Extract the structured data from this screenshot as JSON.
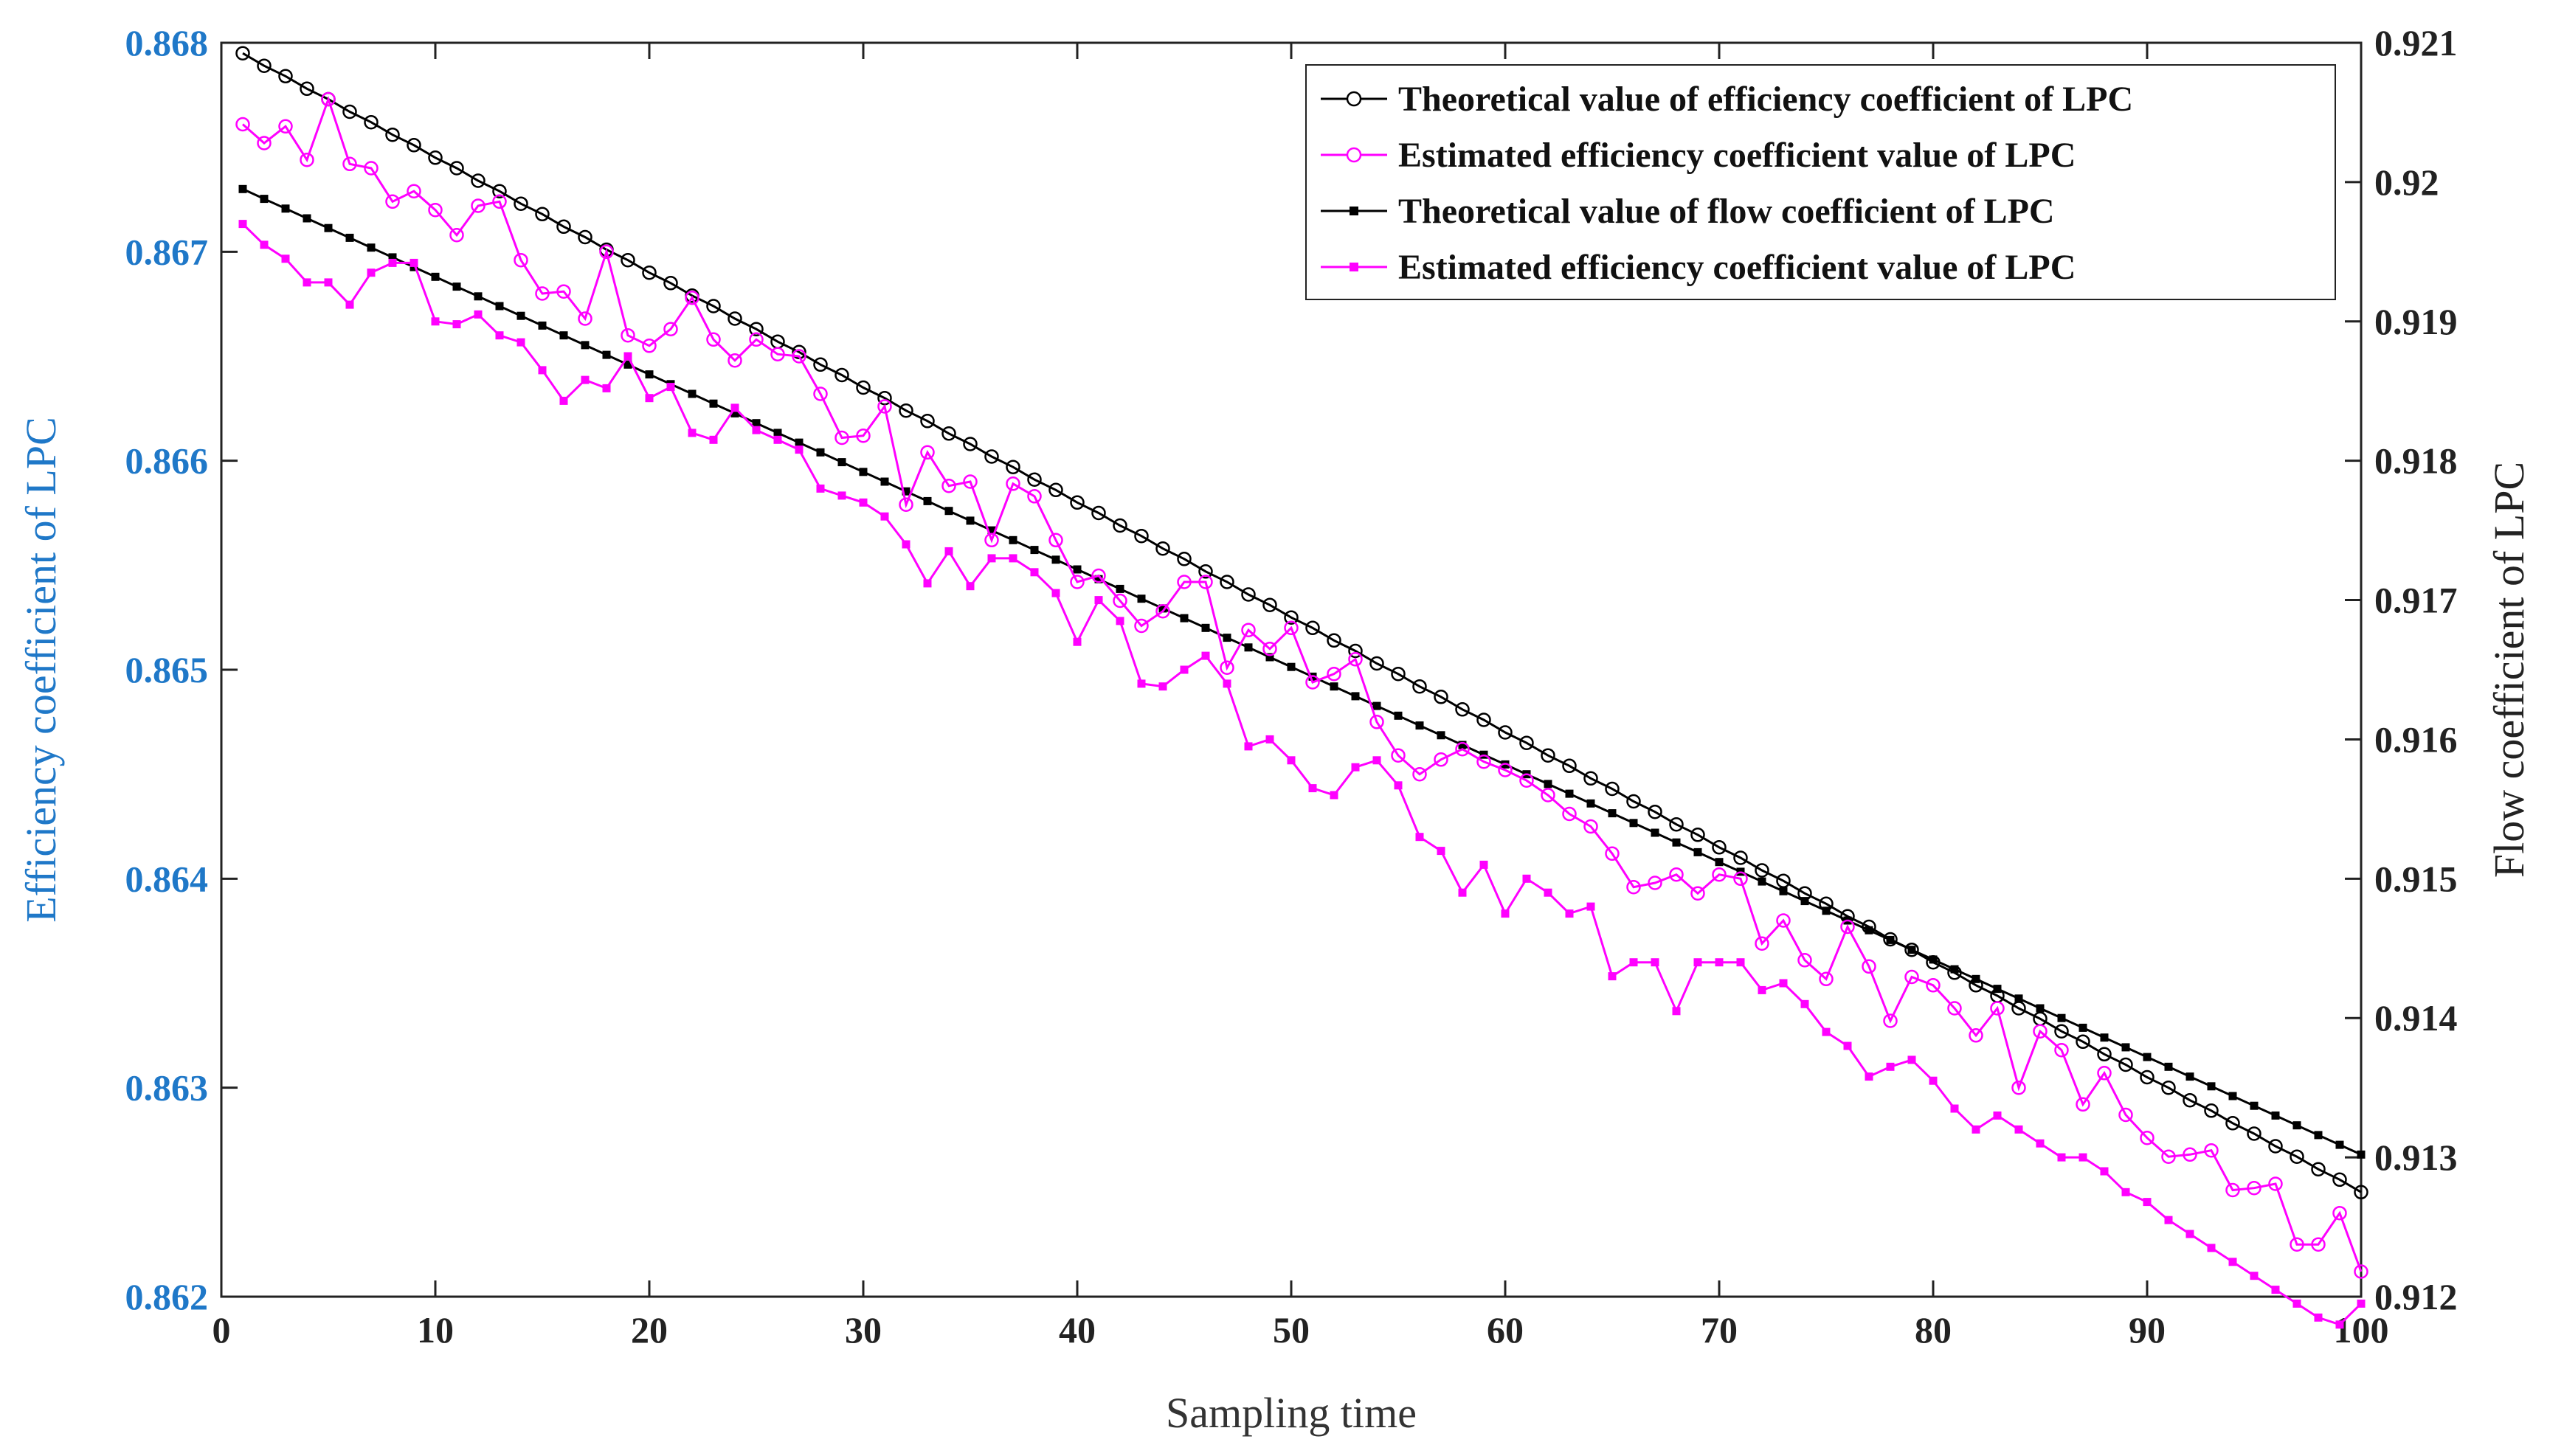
{
  "chart_data": {
    "type": "line",
    "title": "",
    "xlabel": "Sampling time",
    "ylabel_left": "Efficiency coefficient of LPC",
    "ylabel_right": "Flow coefficient of LPC",
    "xlim": [
      0,
      100
    ],
    "ylim_left": [
      0.862,
      0.868
    ],
    "ylim_right": [
      0.912,
      0.921
    ],
    "x_ticks": [
      "0",
      "10",
      "20",
      "30",
      "40",
      "50",
      "60",
      "70",
      "80",
      "90",
      "100"
    ],
    "y_left_ticks": [
      "0.862",
      "0.863",
      "0.864",
      "0.865",
      "0.866",
      "0.867",
      "0.868"
    ],
    "y_right_ticks": [
      "0.912",
      "0.913",
      "0.914",
      "0.915",
      "0.916",
      "0.917",
      "0.918",
      "0.919",
      "0.92",
      "0.921"
    ],
    "grid": false,
    "legend_position": "top-right",
    "colors": {
      "theoretical": "#000000",
      "estimated": "#ff00ff",
      "left_axis": "#1f78c8"
    },
    "series": [
      {
        "name": "Theoretical value of efficiency coefficient of LPC",
        "axis": "left",
        "color": "#000000",
        "marker": "open-circle",
        "x_start": 1,
        "x_end": 100,
        "values": [
          0.86795,
          0.86789,
          0.86784,
          0.86778,
          0.86773,
          0.86767,
          0.86762,
          0.86756,
          0.86751,
          0.86745,
          0.8674,
          0.86734,
          0.86729,
          0.86723,
          0.86718,
          0.86712,
          0.86707,
          0.86701,
          0.86696,
          0.8669,
          0.86685,
          0.86679,
          0.86674,
          0.86668,
          0.86663,
          0.86657,
          0.86652,
          0.86646,
          0.86641,
          0.86635,
          0.8663,
          0.86624,
          0.86619,
          0.86613,
          0.86608,
          0.86602,
          0.86597,
          0.86591,
          0.86586,
          0.8658,
          0.86575,
          0.86569,
          0.86564,
          0.86558,
          0.86553,
          0.86547,
          0.86542,
          0.86536,
          0.86531,
          0.86525,
          0.8652,
          0.86514,
          0.86509,
          0.86503,
          0.86498,
          0.86492,
          0.86487,
          0.86481,
          0.86476,
          0.8647,
          0.86465,
          0.86459,
          0.86454,
          0.86448,
          0.86443,
          0.86437,
          0.86432,
          0.86426,
          0.86421,
          0.86415,
          0.8641,
          0.86404,
          0.86399,
          0.86393,
          0.86388,
          0.86382,
          0.86377,
          0.86371,
          0.86366,
          0.8636,
          0.86355,
          0.86349,
          0.86344,
          0.86338,
          0.86333,
          0.86327,
          0.86322,
          0.86316,
          0.86311,
          0.86305,
          0.863,
          0.86294,
          0.86289,
          0.86283,
          0.86278,
          0.86272,
          0.86267,
          0.86261,
          0.86256,
          0.8625
        ]
      },
      {
        "name": "Estimated efficiency coefficient value of LPC",
        "axis": "left",
        "color": "#ff00ff",
        "marker": "open-circle",
        "x_start": 1,
        "x_end": 100,
        "values": [
          0.86761,
          0.86752,
          0.8676,
          0.86744,
          0.86773,
          0.86742,
          0.8674,
          0.86724,
          0.86729,
          0.8672,
          0.86708,
          0.86722,
          0.86724,
          0.86696,
          0.8668,
          0.86681,
          0.86668,
          0.867,
          0.8666,
          0.86655,
          0.86663,
          0.86678,
          0.86658,
          0.86648,
          0.86658,
          0.86651,
          0.8665,
          0.86632,
          0.86611,
          0.86612,
          0.86626,
          0.86579,
          0.86604,
          0.86588,
          0.8659,
          0.86562,
          0.86589,
          0.86583,
          0.86562,
          0.86542,
          0.86545,
          0.86533,
          0.86521,
          0.86528,
          0.86542,
          0.86542,
          0.86501,
          0.86519,
          0.8651,
          0.8652,
          0.86494,
          0.86498,
          0.86505,
          0.86475,
          0.86459,
          0.8645,
          0.86457,
          0.86462,
          0.86456,
          0.86452,
          0.86447,
          0.8644,
          0.86431,
          0.86425,
          0.86412,
          0.86396,
          0.86398,
          0.86402,
          0.86393,
          0.86402,
          0.864,
          0.86369,
          0.8638,
          0.86361,
          0.86352,
          0.86377,
          0.86358,
          0.86332,
          0.86353,
          0.86349,
          0.86338,
          0.86325,
          0.86338,
          0.863,
          0.86327,
          0.86318,
          0.86292,
          0.86307,
          0.86287,
          0.86276,
          0.86267,
          0.86268,
          0.8627,
          0.86251,
          0.86252,
          0.86254,
          0.86225,
          0.86225,
          0.8624,
          0.86212
        ]
      },
      {
        "name": "Theoretical value of flow coefficient of LPC",
        "axis": "right",
        "color": "#000000",
        "marker": "filled-square",
        "x_start": 1,
        "x_end": 100,
        "values": [
          0.91995,
          0.91988,
          0.91981,
          0.91974,
          0.91967,
          0.9196,
          0.91953,
          0.91946,
          0.91939,
          0.91932,
          0.91925,
          0.91918,
          0.91911,
          0.91904,
          0.91897,
          0.9189,
          0.91883,
          0.91876,
          0.91869,
          0.91862,
          0.91855,
          0.91848,
          0.91841,
          0.91834,
          0.91827,
          0.9182,
          0.91813,
          0.91806,
          0.91799,
          0.91792,
          0.91785,
          0.91778,
          0.91771,
          0.91764,
          0.91757,
          0.9175,
          0.91743,
          0.91736,
          0.91729,
          0.91722,
          0.91715,
          0.91708,
          0.91701,
          0.91694,
          0.91687,
          0.9168,
          0.91673,
          0.91666,
          0.91659,
          0.91652,
          0.91645,
          0.91638,
          0.91631,
          0.91624,
          0.91617,
          0.9161,
          0.91603,
          0.91596,
          0.91589,
          0.91582,
          0.91575,
          0.91568,
          0.91561,
          0.91554,
          0.91547,
          0.9154,
          0.91533,
          0.91526,
          0.91519,
          0.91512,
          0.91505,
          0.91498,
          0.91491,
          0.91484,
          0.91477,
          0.9147,
          0.91463,
          0.91456,
          0.91449,
          0.91442,
          0.91435,
          0.91428,
          0.91421,
          0.91414,
          0.91407,
          0.914,
          0.91393,
          0.91386,
          0.91379,
          0.91372,
          0.91365,
          0.91358,
          0.91351,
          0.91344,
          0.91337,
          0.9133,
          0.91323,
          0.91316,
          0.91309,
          0.91302
        ]
      },
      {
        "name": "Estimated efficiency coefficient value of LPC",
        "axis": "right",
        "color": "#ff00ff",
        "marker": "filled-square",
        "x_start": 1,
        "x_end": 100,
        "values": [
          0.9197,
          0.91955,
          0.91945,
          0.91928,
          0.91928,
          0.91912,
          0.91935,
          0.91942,
          0.91942,
          0.919,
          0.91898,
          0.91905,
          0.9189,
          0.91885,
          0.91865,
          0.91843,
          0.91858,
          0.91852,
          0.91875,
          0.91845,
          0.91853,
          0.9182,
          0.91815,
          0.91838,
          0.91822,
          0.91815,
          0.91808,
          0.9178,
          0.91775,
          0.9177,
          0.9176,
          0.9174,
          0.91712,
          0.91735,
          0.9171,
          0.9173,
          0.9173,
          0.9172,
          0.91705,
          0.9167,
          0.917,
          0.91685,
          0.9164,
          0.91638,
          0.9165,
          0.9166,
          0.9164,
          0.91595,
          0.916,
          0.91585,
          0.91565,
          0.9156,
          0.9158,
          0.91585,
          0.91567,
          0.9153,
          0.9152,
          0.9149,
          0.9151,
          0.91475,
          0.915,
          0.9149,
          0.91475,
          0.9148,
          0.9143,
          0.9144,
          0.9144,
          0.91405,
          0.9144,
          0.9144,
          0.9144,
          0.9142,
          0.91425,
          0.9141,
          0.9139,
          0.9138,
          0.91358,
          0.91365,
          0.9137,
          0.91355,
          0.91335,
          0.9132,
          0.9133,
          0.9132,
          0.9131,
          0.913,
          0.913,
          0.9129,
          0.91275,
          0.91268,
          0.91255,
          0.91245,
          0.91235,
          0.91225,
          0.91215,
          0.91205,
          0.91195,
          0.91185,
          0.9118,
          0.91195
        ]
      }
    ]
  }
}
